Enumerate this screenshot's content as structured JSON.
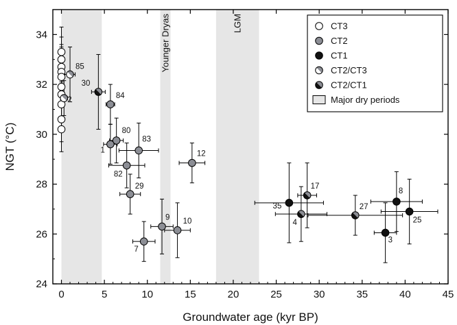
{
  "chart_data": {
    "type": "scatter",
    "xlabel": "Groundwater age (kyr BP)",
    "ylabel": "NGT (°C)",
    "xlim": [
      -1,
      45
    ],
    "ylim": [
      24,
      35
    ],
    "xticks": [
      0,
      5,
      10,
      15,
      20,
      25,
      30,
      35,
      40,
      45
    ],
    "yticks": [
      24,
      26,
      28,
      30,
      32,
      34
    ],
    "grid": false,
    "legend_position": "top-right",
    "colors": {
      "CT3": "#ffffff",
      "CT2": "#8c8e95",
      "CT1": "#111111",
      "dry_period": "#e6e6e6"
    },
    "shaded_periods": [
      {
        "label": "",
        "x_range": [
          0,
          4.7
        ]
      },
      {
        "label": "Younger Dryas",
        "x_range": [
          11.5,
          12.7
        ]
      },
      {
        "label": "LGM",
        "x_range": [
          18,
          23
        ]
      }
    ],
    "legend": [
      {
        "label": "CT3",
        "marker": "open"
      },
      {
        "label": "CT2",
        "marker": "gray"
      },
      {
        "label": "CT1",
        "marker": "black"
      },
      {
        "label": "CT2/CT3",
        "marker": "half-gray-white"
      },
      {
        "label": "CT2/CT1",
        "marker": "half-gray-black"
      },
      {
        "label": "Major dry periods",
        "marker": "box"
      }
    ],
    "series": [
      {
        "name": "CT3",
        "points": [
          {
            "x": 0,
            "y": 33.3,
            "yerr": 1.0
          },
          {
            "x": 0,
            "y": 33.0,
            "yerr": 0.9
          },
          {
            "x": 0,
            "y": 32.7,
            "yerr": 0.9
          },
          {
            "x": 0,
            "y": 32.5,
            "yerr": 1.0
          },
          {
            "x": 0,
            "y": 32.3,
            "yerr": 0.8
          },
          {
            "x": 0,
            "y": 31.9,
            "yerr": 0.8
          },
          {
            "x": 0,
            "y": 31.6,
            "yerr": 0.9
          },
          {
            "x": 0,
            "y": 31.2,
            "yerr": 1.0
          },
          {
            "x": 0,
            "y": 30.6,
            "yerr": 0.9
          },
          {
            "x": 0,
            "y": 30.2,
            "yerr": 0.9
          }
        ]
      },
      {
        "name": "CT2",
        "points": [
          {
            "label": "84",
            "x": 5.7,
            "y": 31.2,
            "xerr": 0.5,
            "yerr": 0.8
          },
          {
            "label": "80",
            "x": 6.4,
            "y": 29.75,
            "xerr": 0.8,
            "yerr": 0.9
          },
          {
            "label": "1",
            "x": 5.7,
            "y": 29.6,
            "xerr": 0.8,
            "yerr": 0.8
          },
          {
            "label": "83",
            "x": 9.0,
            "y": 29.35,
            "xerr": 2.3,
            "yerr": 1.1
          },
          {
            "label": "82",
            "x": 7.6,
            "y": 28.75,
            "xerr": 2.1,
            "yerr": 0.9
          },
          {
            "label": "29",
            "x": 8.0,
            "y": 27.6,
            "xerr": 1.2,
            "yerr": 0.8
          },
          {
            "label": "12",
            "x": 15.2,
            "y": 28.85,
            "xerr": 1.5,
            "yerr": 0.8
          },
          {
            "label": "9",
            "x": 11.7,
            "y": 26.3,
            "xerr": 1.3,
            "yerr": 1.1
          },
          {
            "label": "10",
            "x": 13.5,
            "y": 26.15,
            "xerr": 1.5,
            "yerr": 1.1
          },
          {
            "label": "7",
            "x": 9.6,
            "y": 25.7,
            "xerr": 1.3,
            "yerr": 0.8
          }
        ]
      },
      {
        "name": "CT1",
        "points": [
          {
            "label": "35",
            "x": 26.5,
            "y": 27.25,
            "xerr": 4.0,
            "yerr": 1.6
          },
          {
            "label": "8",
            "x": 39.0,
            "y": 27.3,
            "xerr": 3.0,
            "yerr": 1.2
          },
          {
            "label": "25",
            "x": 40.5,
            "y": 26.9,
            "xerr": 3.3,
            "yerr": 1.3
          },
          {
            "label": "3",
            "x": 37.7,
            "y": 26.05,
            "xerr": 1.3,
            "yerr": 1.2
          }
        ]
      },
      {
        "name": "CT2/CT3",
        "points": [
          {
            "label": "85",
            "x": 1.0,
            "y": 32.4,
            "xerr": 0.6,
            "yerr": 1.1
          },
          {
            "label": "2",
            "x": 0.3,
            "y": 31.45,
            "xerr": 0.4,
            "yerr": 0.7
          }
        ]
      },
      {
        "name": "CT2/CT1",
        "points": [
          {
            "label": "30",
            "x": 4.3,
            "y": 31.7,
            "xerr": 0.8,
            "yerr": 1.5
          },
          {
            "label": "17",
            "x": 28.6,
            "y": 27.55,
            "xerr": 1.1,
            "yerr": 1.3
          },
          {
            "label": "4",
            "x": 27.9,
            "y": 26.8,
            "xerr": 3.0,
            "yerr": 1.1
          },
          {
            "label": "27",
            "x": 34.2,
            "y": 26.75,
            "xerr": 5.5,
            "yerr": 0.8
          }
        ]
      }
    ]
  }
}
